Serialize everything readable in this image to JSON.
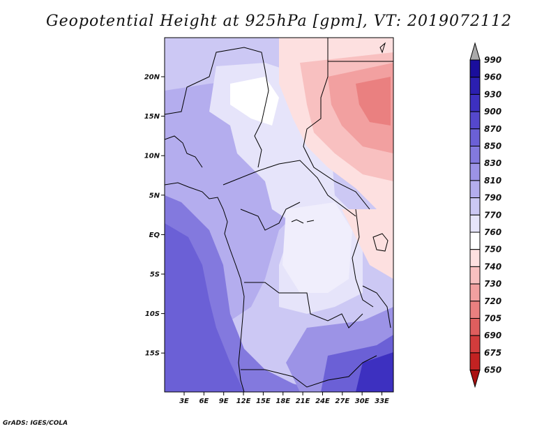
{
  "title": "Geopotential Height at 925hPa [gpm], VT: 2019072112",
  "credit": "GrADS: IGES/COLA",
  "map": {
    "lat_ticks": [
      "20N",
      "15N",
      "10N",
      "5N",
      "EQ",
      "5S",
      "10S",
      "15S"
    ],
    "lon_ticks": [
      "3E",
      "6E",
      "9E",
      "12E",
      "15E",
      "18E",
      "21E",
      "24E",
      "27E",
      "30E",
      "33E"
    ]
  },
  "colorbar": {
    "levels": [
      "990",
      "960",
      "930",
      "900",
      "870",
      "850",
      "830",
      "810",
      "790",
      "770",
      "760",
      "750",
      "740",
      "730",
      "720",
      "705",
      "690",
      "675",
      "650"
    ],
    "colors": [
      "#aaaaaa",
      "#1a0e9c",
      "#2b1fb0",
      "#3d30c0",
      "#5548cc",
      "#6b60d6",
      "#8379de",
      "#9c93e6",
      "#b4adee",
      "#ccc8f4",
      "#e6e4fa",
      "#ffffff",
      "#fde0e0",
      "#f8c0c0",
      "#f2a0a0",
      "#ea8080",
      "#df5e5e",
      "#d23c3c",
      "#c22222",
      "#aa1111"
    ]
  }
}
